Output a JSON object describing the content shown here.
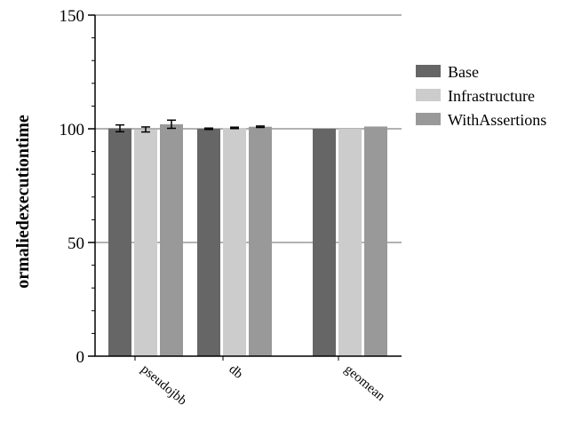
{
  "chart_data": {
    "type": "bar",
    "title": "",
    "xlabel": "",
    "ylabel": "ormaliedexecutiontime",
    "ylim": [
      0,
      150
    ],
    "y_ticks": [
      0,
      50,
      100,
      150
    ],
    "y_minor_step": 10,
    "grid": "horizontal at major ticks",
    "legend_position": "right",
    "categories": [
      "pseudojbb",
      "db",
      "geomean"
    ],
    "series": [
      {
        "name": "Base",
        "color": "#666666",
        "values": [
          100.2,
          100.0,
          100.0
        ],
        "errors": [
          1.5,
          0.3,
          null
        ]
      },
      {
        "name": "Infrastructure",
        "color": "#cccccc",
        "values": [
          99.7,
          100.4,
          100.0
        ],
        "errors": [
          1.1,
          0.3,
          null
        ]
      },
      {
        "name": "WithAssertions",
        "color": "#999999",
        "values": [
          102.0,
          100.9,
          101.0
        ],
        "errors": [
          1.8,
          0.3,
          null
        ]
      }
    ]
  }
}
